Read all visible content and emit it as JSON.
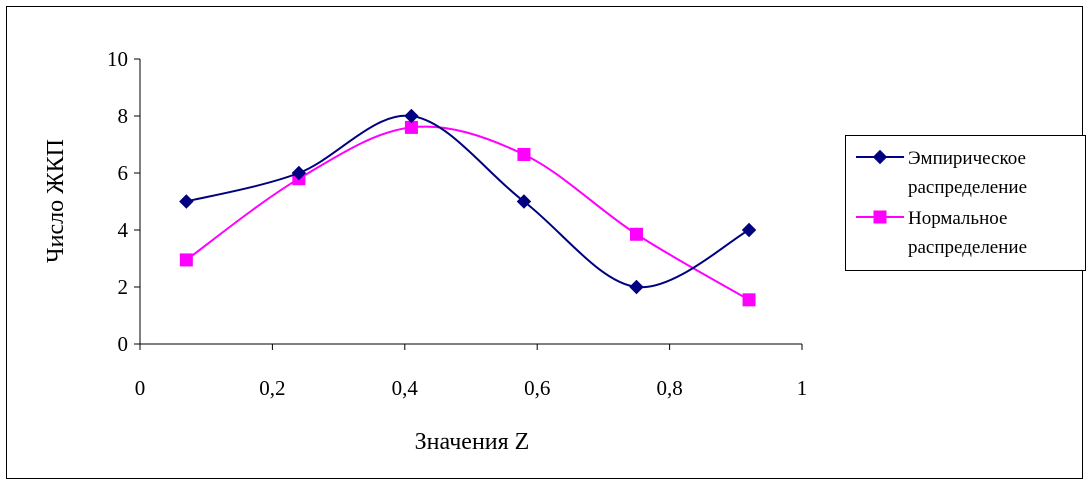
{
  "chart_data": {
    "type": "line",
    "title": "",
    "xlabel": "Значения Z",
    "ylabel": "Число ЖКП",
    "xlim": [
      0,
      1
    ],
    "ylim": [
      0,
      10
    ],
    "x_ticks": [
      "0",
      "0,2",
      "0,4",
      "0,6",
      "0,8",
      "1"
    ],
    "y_ticks": [
      "0",
      "2",
      "4",
      "6",
      "8",
      "10"
    ],
    "smoothed": true,
    "grid": false,
    "legend_position": "right",
    "series": [
      {
        "name": "Эмпирическое распределение",
        "legend_lines": [
          "Эмпирическое",
          "распределение"
        ],
        "color": "#000080",
        "marker": "diamond",
        "x": [
          0.07,
          0.24,
          0.41,
          0.58,
          0.75,
          0.92
        ],
        "y": [
          5,
          6,
          8,
          5,
          2,
          4
        ]
      },
      {
        "name": "Нормальное распределение",
        "legend_lines": [
          "Нормальное",
          "распределение"
        ],
        "color": "#FF00FF",
        "marker": "square",
        "x": [
          0.07,
          0.24,
          0.41,
          0.58,
          0.75,
          0.92
        ],
        "y": [
          2.95,
          5.8,
          7.6,
          6.65,
          3.85,
          1.55
        ]
      }
    ]
  }
}
